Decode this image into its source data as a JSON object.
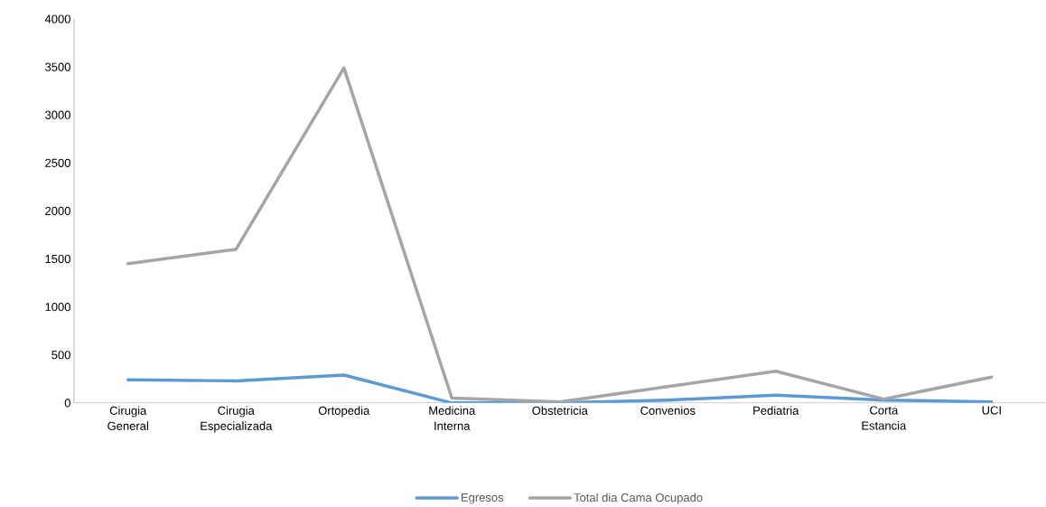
{
  "chart_data": {
    "type": "line",
    "categories": [
      "Cirugia General",
      "Cirugia Especializada",
      "Ortopedia",
      "Medicina Interna",
      "Obstetricia",
      "Convenios",
      "Pediatria",
      "Corta Estancia",
      "UCI"
    ],
    "series": [
      {
        "name": "Egresos",
        "color": "#5b9bd5",
        "values": [
          240,
          230,
          290,
          0,
          0,
          30,
          80,
          30,
          10
        ]
      },
      {
        "name": "Total dia Cama Ocupado",
        "color": "#a5a5a5",
        "values": [
          1450,
          1600,
          3490,
          50,
          10,
          170,
          330,
          40,
          270
        ]
      }
    ],
    "ylim": [
      0,
      4000
    ],
    "yticks": [
      0,
      500,
      1000,
      1500,
      2000,
      2500,
      3000,
      3500,
      4000
    ],
    "grid": false,
    "legend": "bottom",
    "marker": "none",
    "line_style": "solid"
  }
}
